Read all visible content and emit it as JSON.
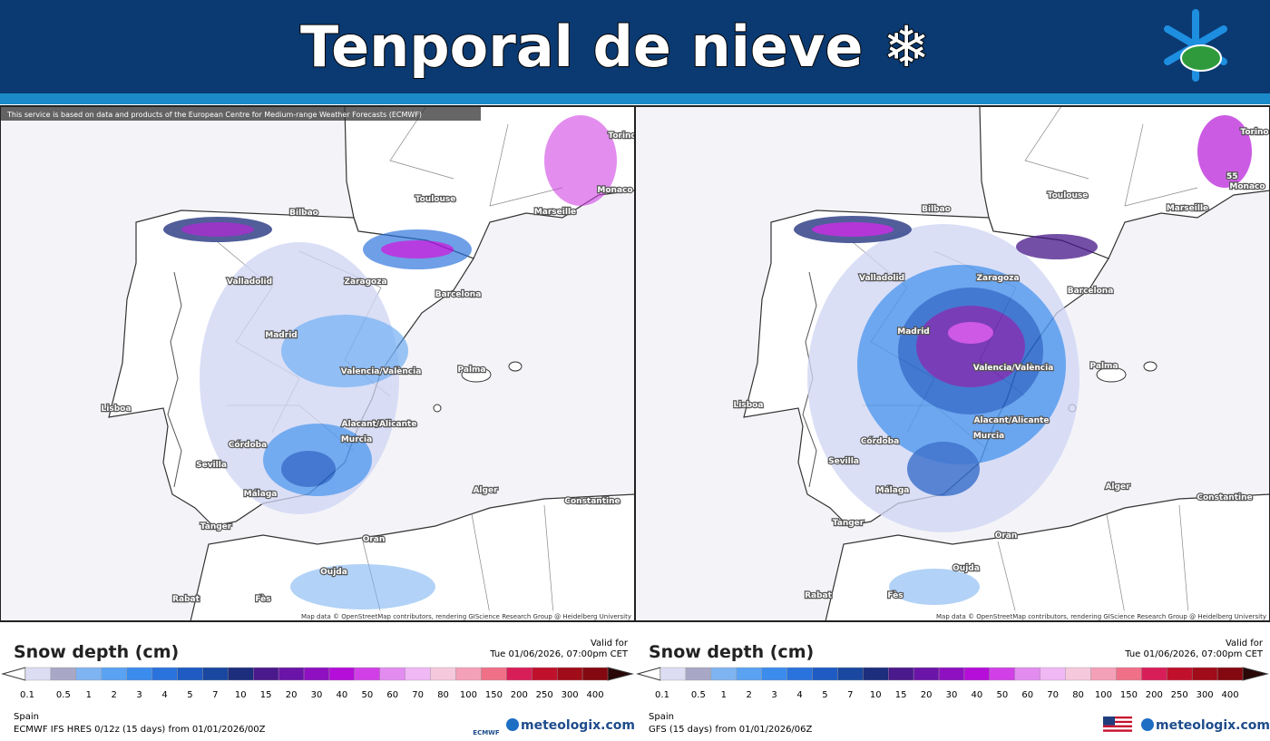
{
  "header": {
    "title": "Tenporal de nieve ❄"
  },
  "panels": [
    {
      "attribution_top": "This service is based on data and products of the European Centre for Medium-range Weather Forecasts (ECMWF)",
      "map_credit": "Map data © OpenStreetMap contributors, rendering GIScience Research Group @ Heidelberg University",
      "cities": [
        "Toulouse",
        "Marseille",
        "Bilbao",
        "Zaragoza",
        "Barcelona",
        "Valladolid",
        "Madrid",
        "Valencia/València",
        "Palma",
        "Lisboa",
        "Córdoba",
        "Sevilla",
        "Alacant/Alicante",
        "Murcia",
        "Málaga",
        "Alger",
        "Constantine",
        "Tanger",
        "Oran",
        "Oujda",
        "Rabat",
        "Fès",
        "Monaco",
        "Torino"
      ],
      "legend_title": "Snow depth (cm)",
      "valid_label": "Valid for",
      "valid_time": "Tue 01/06/2026, 07:00pm CET",
      "region": "Spain",
      "model": "ECMWF IFS HRES 0/12z (15 days) from 01/01/2026/00Z",
      "provider": "ECMWF",
      "logo": "meteologix.com"
    },
    {
      "map_credit": "Map data © OpenStreetMap contributors, rendering GIScience Research Group @ Heidelberg University",
      "cities": [
        "Toulouse",
        "Marseille",
        "Bilbao",
        "Zaragoza",
        "Barcelona",
        "Valladolid",
        "Madrid",
        "Valencia/València",
        "Palma",
        "Lisboa",
        "Córdoba",
        "Sevilla",
        "Alacant/Alicante",
        "Murcia",
        "Málaga",
        "Alger",
        "Constantine",
        "Tanger",
        "Oran",
        "Oujda",
        "Rabat",
        "Fès",
        "Monaco",
        "Torino"
      ],
      "max_label": "55",
      "legend_title": "Snow depth (cm)",
      "valid_label": "Valid for",
      "valid_time": "Tue 01/06/2026, 07:00pm CET",
      "region": "Spain",
      "model": "GFS (15 days) from 01/01/2026/06Z",
      "logo": "meteologix.com"
    }
  ],
  "scale": {
    "labels": [
      0.1,
      0.5,
      1,
      2,
      3,
      4,
      5,
      7,
      10,
      15,
      20,
      30,
      40,
      50,
      60,
      70,
      80,
      100,
      150,
      200,
      250,
      300,
      400
    ],
    "colors": [
      "#dcdcf2",
      "#a8a8c6",
      "#7fb4f2",
      "#5aa2f2",
      "#3b8cec",
      "#2a72dc",
      "#1e5cc4",
      "#1a48a0",
      "#1c2e7c",
      "#4a1a8c",
      "#6a14a8",
      "#8e10c0",
      "#b40ed8",
      "#d040e6",
      "#e28cf0",
      "#f0b8f4",
      "#f6c8dc",
      "#f4a0b8",
      "#f07088",
      "#d81e58",
      "#c0102c",
      "#a00c18",
      "#840810"
    ]
  }
}
